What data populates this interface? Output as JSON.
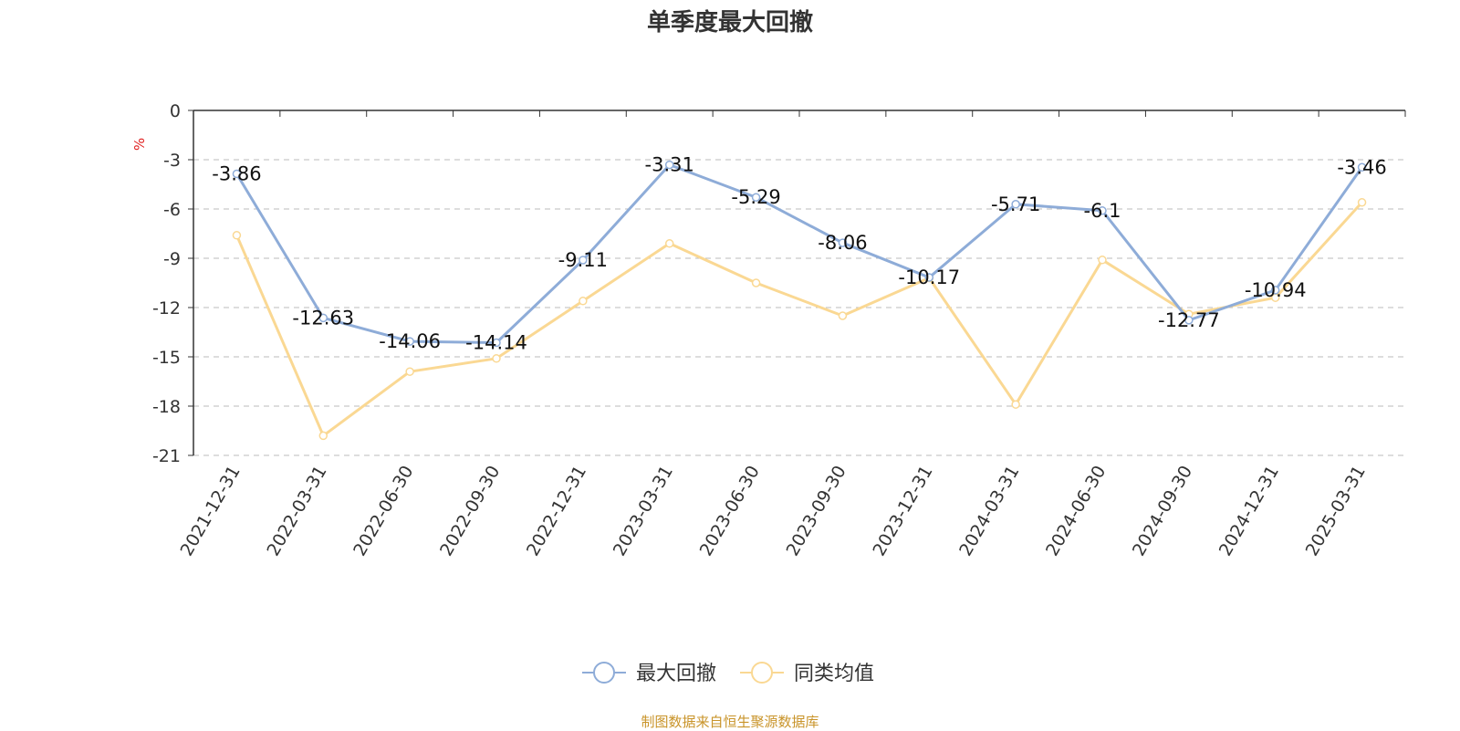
{
  "title": "单季度最大回撤",
  "footer": "制图数据来自恒生聚源数据库",
  "chart_data": {
    "type": "line",
    "title": "单季度最大回撤",
    "ylabel": "%",
    "ylim": [
      -21,
      0
    ],
    "yticks": [
      0,
      -3,
      -6,
      -9,
      -12,
      -15,
      -18,
      -21
    ],
    "grid": true,
    "legend_position": "bottom-center",
    "x": [
      "2021-12-31",
      "2022-03-31",
      "2022-06-30",
      "2022-09-30",
      "2022-12-31",
      "2023-03-31",
      "2023-06-30",
      "2023-09-30",
      "2023-12-31",
      "2024-03-31",
      "2024-06-30",
      "2024-09-30",
      "2024-12-31",
      "2025-03-31"
    ],
    "series": [
      {
        "name": "最大回撤",
        "color": "#8eacd8",
        "show_labels": true,
        "values": [
          -3.86,
          -12.63,
          -14.06,
          -14.14,
          -9.11,
          -3.31,
          -5.29,
          -8.06,
          -10.17,
          -5.71,
          -6.1,
          -12.77,
          -10.94,
          -3.46
        ]
      },
      {
        "name": "同类均值",
        "color": "#fad893",
        "show_labels": false,
        "values": [
          -7.6,
          -19.8,
          -15.9,
          -15.1,
          -11.6,
          -8.1,
          -10.5,
          -12.5,
          -10.2,
          -17.9,
          -9.1,
          -12.4,
          -11.4,
          -5.6
        ]
      }
    ]
  }
}
